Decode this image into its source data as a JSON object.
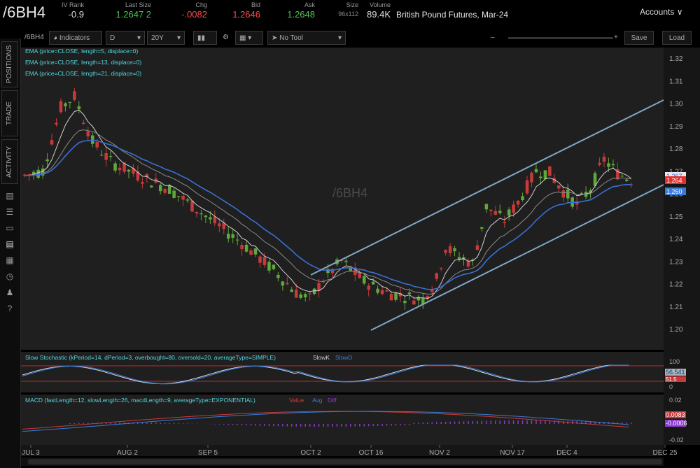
{
  "header": {
    "symbol": "/6BH4",
    "iv_rank_label": "IV Rank",
    "iv_rank": "-0.9",
    "last_size_label": "Last Size",
    "last_size": "1.2647 2",
    "chg_label": "Chg",
    "chg": "-.0082",
    "bid_label": "Bid",
    "bid": "1.2646",
    "ask_label": "Ask",
    "ask": "1.2648",
    "size_label": "Size",
    "size": "96x112",
    "volume_label": "Volume",
    "volume": "89.4K",
    "description": "British Pound Futures, Mar-24",
    "accounts": "Accounts"
  },
  "toolbar": {
    "symbol": "/6BH4",
    "indicators": "Indicators",
    "aggregation": "D",
    "period": "20Y",
    "tool": "No Tool",
    "save": "Save",
    "load": "Load"
  },
  "sidebar": {
    "tabs": [
      "POSITIONS",
      "TRADE",
      "ACTIVITY"
    ]
  },
  "chart_data": {
    "type": "candlestick",
    "watermark": "/6BH4",
    "studies": [
      "EMA (price=CLOSE, length=5, displace=0)",
      "EMA (price=CLOSE, length=13, displace=0)",
      "EMA (price=CLOSE, length=21, displace=0)"
    ],
    "y_ticks": [
      "1.32",
      "1.31",
      "1.30",
      "1.29",
      "1.28",
      "1.27",
      "1.26",
      "1.25",
      "1.24",
      "1.23",
      "1.22",
      "1.21",
      "1.20"
    ],
    "price_labels": [
      {
        "text": "1.267",
        "color": "#ffffff"
      },
      {
        "text": "1.264",
        "color": "#e03030"
      },
      {
        "text": "1.260",
        "color": "#3a7bd5"
      }
    ],
    "x_labels": [
      "JUL 3",
      "AUG 2",
      "SEP 5",
      "OCT 2",
      "OCT 16",
      "NOV 2",
      "NOV 17",
      "DEC 4",
      "DEC 25"
    ],
    "stochastic": {
      "label": "Slow Stochastic (kPeriod=14, dPeriod=3, overbought=80, oversold=20, averageType=SIMPLE)",
      "k_label": "SlowK",
      "d_label": "SlowD",
      "y_ticks": [
        "100",
        "0"
      ],
      "values": [
        "56.541",
        "51.5"
      ]
    },
    "macd": {
      "label": "MACD (fastLength=12, slowLength=26, macdLength=9, averageType=EXPONENTIAL)",
      "value_label": "Value",
      "avg_label": "Avg",
      "diff_label": "Diff",
      "y_ticks": [
        "0.02",
        "-0.02"
      ],
      "values": [
        "0.0083",
        "-0.0006"
      ]
    },
    "colors": {
      "up": "#5fa83a",
      "down": "#c83a3a",
      "ema5": "#cfcfcf",
      "ema13": "#8a8a8a",
      "ema21": "#3a6fd5",
      "channel": "#7fa8c8"
    }
  }
}
